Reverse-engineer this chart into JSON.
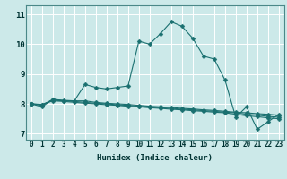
{
  "xlabel": "Humidex (Indice chaleur)",
  "xlim": [
    -0.5,
    23.5
  ],
  "ylim": [
    6.8,
    11.3
  ],
  "xticks": [
    0,
    1,
    2,
    3,
    4,
    5,
    6,
    7,
    8,
    9,
    10,
    11,
    12,
    13,
    14,
    15,
    16,
    17,
    18,
    19,
    20,
    21,
    22,
    23
  ],
  "yticks": [
    7,
    8,
    9,
    10,
    11
  ],
  "bg_color": "#cce9e9",
  "line_color": "#1a7070",
  "grid_color": "#ffffff",
  "line1": [
    8.0,
    7.9,
    8.15,
    8.1,
    8.1,
    8.65,
    8.55,
    8.5,
    8.55,
    8.6,
    10.1,
    10.0,
    10.35,
    10.75,
    10.6,
    10.2,
    9.6,
    9.5,
    8.8,
    7.55,
    7.9,
    7.15,
    7.4,
    7.65
  ],
  "line2": [
    8.0,
    7.95,
    8.15,
    8.12,
    8.1,
    8.1,
    8.05,
    8.02,
    8.0,
    7.98,
    7.95,
    7.92,
    7.9,
    7.88,
    7.85,
    7.83,
    7.8,
    7.78,
    7.75,
    7.72,
    7.7,
    7.67,
    7.65,
    7.62
  ],
  "line3": [
    8.0,
    7.98,
    8.12,
    8.1,
    8.08,
    8.05,
    8.02,
    8.0,
    7.97,
    7.95,
    7.92,
    7.9,
    7.87,
    7.85,
    7.82,
    7.8,
    7.77,
    7.75,
    7.72,
    7.7,
    7.65,
    7.62,
    7.58,
    7.55
  ],
  "line4": [
    8.0,
    7.97,
    8.1,
    8.08,
    8.05,
    8.02,
    8.0,
    7.97,
    7.95,
    7.92,
    7.9,
    7.87,
    7.85,
    7.82,
    7.8,
    7.77,
    7.75,
    7.72,
    7.7,
    7.65,
    7.6,
    7.57,
    7.53,
    7.5
  ],
  "marker_size": 2.5,
  "linewidth": 0.8,
  "tick_fontsize": 5.5,
  "xlabel_fontsize": 6.5,
  "font_family": "monospace"
}
